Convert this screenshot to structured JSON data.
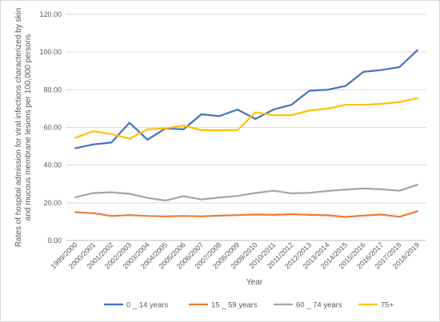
{
  "chart_data": {
    "type": "line",
    "xlabel": "Year",
    "ylabel": "Rates of hospital admission for viral infections characterized by skin and mucous membrane lesions per 100,000 persons",
    "ylim": [
      0,
      120
    ],
    "y_ticks": [
      "0.00",
      "20.00",
      "40.00",
      "60.00",
      "80.00",
      "100.00",
      "120.00"
    ],
    "grid": "horizontal",
    "legend_position": "bottom",
    "categories": [
      "1999/2000",
      "2000/2001",
      "2001/2002",
      "2002/2003",
      "2003/2004",
      "2004/2005",
      "2005/2006",
      "2006/2007",
      "2007/2008",
      "2008/2009",
      "2009/2010",
      "2010/2011",
      "2011/2012",
      "2012/2013",
      "2013/2014",
      "2014/2015",
      "2015/2016",
      "2016/2017",
      "2017/2018",
      "2018/2019"
    ],
    "series": [
      {
        "name": "0 _ 14 years",
        "color": "#4472c4",
        "values": [
          49.0,
          51.0,
          52.0,
          62.5,
          53.5,
          59.5,
          59.0,
          67.0,
          66.0,
          69.5,
          64.5,
          69.5,
          72.0,
          79.5,
          80.0,
          82.0,
          89.5,
          90.5,
          92.0,
          101.0
        ]
      },
      {
        "name": "15 _ 59 years",
        "color": "#ed7d31",
        "values": [
          15.0,
          14.5,
          13.0,
          13.5,
          13.0,
          12.8,
          13.0,
          12.8,
          13.2,
          13.5,
          13.8,
          13.6,
          14.0,
          13.6,
          13.4,
          12.5,
          13.2,
          13.8,
          12.6,
          15.5
        ]
      },
      {
        "name": "60 _ 74 years",
        "color": "#a5a5a5",
        "values": [
          23.0,
          25.2,
          25.6,
          24.8,
          22.6,
          21.2,
          23.5,
          21.8,
          22.8,
          23.6,
          25.2,
          26.4,
          25.0,
          25.3,
          26.3,
          27.0,
          27.6,
          27.2,
          26.4,
          29.6
        ]
      },
      {
        "name": "75+",
        "color": "#ffc000",
        "values": [
          54.5,
          58.0,
          56.5,
          54.0,
          59.0,
          59.5,
          61.0,
          58.5,
          58.5,
          58.5,
          68.0,
          66.5,
          66.5,
          69.0,
          70.0,
          72.0,
          72.0,
          72.5,
          73.5,
          75.5
        ]
      }
    ]
  }
}
